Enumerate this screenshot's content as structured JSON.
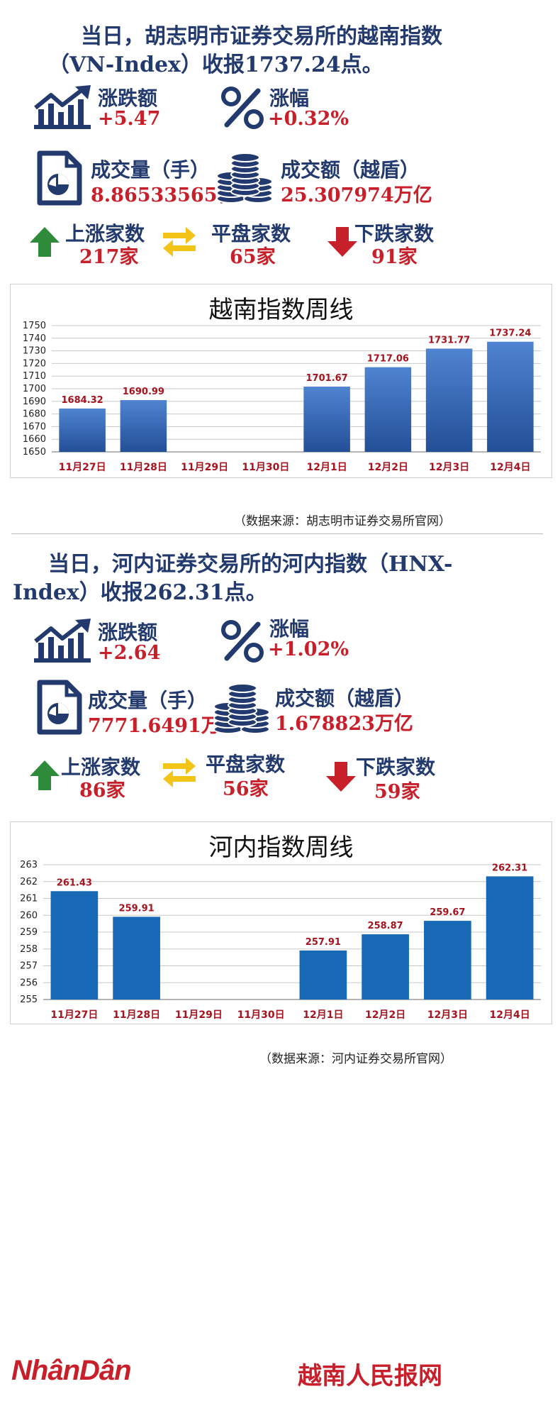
{
  "colors": {
    "navy": "#233a6e",
    "red": "#c8202a",
    "green": "#2e8b3a",
    "yellow": "#f2c418",
    "bar_grad_top": "#4f84d1",
    "bar_grad_bottom": "#234f97",
    "bar_solid": "#1769b6"
  },
  "vn": {
    "headline_l1": "当日，胡志明市证券交易所的越南指数",
    "headline_l2": "（VN-Index）收报1737.24点。",
    "change_label": "涨跌额",
    "change_value": "+5.47",
    "pct_label": "涨幅",
    "pct_value": "+0.32%",
    "volume_label": "成交量（手）",
    "volume_value": "8.86533565亿",
    "turnover_label": "成交额（越盾）",
    "turnover_value": "25.307974万亿",
    "up_label": "上涨家数",
    "up_value": "217家",
    "flat_label": "平盘家数",
    "flat_value": "65家",
    "down_label": "下跌家数",
    "down_value": "91家",
    "source": "（数据来源：胡志明市证券交易所官网）"
  },
  "hnx": {
    "headline_l1": "当日，河内证券交易所的河内指数（HNX-",
    "headline_l2": "Index）收报262.31点。",
    "change_label": "涨跌额",
    "change_value": "+2.64",
    "pct_label": "涨幅",
    "pct_value": "+1.02%",
    "volume_label": "成交量（手）",
    "volume_value": "7771.6491万",
    "turnover_label": "成交额（越盾）",
    "turnover_value": "1.678823万亿",
    "up_label": "上涨家数",
    "up_value": "86家",
    "flat_label": "平盘家数",
    "flat_value": "56家",
    "down_label": "下跌家数",
    "down_value": "59家",
    "source": "（数据来源：河内证券交易所官网）"
  },
  "footer": {
    "logo": "NhânDân",
    "brand": "越南人民报网"
  },
  "chart_data": [
    {
      "type": "bar",
      "title": "越南指数周线",
      "categories": [
        "11月27日",
        "11月28日",
        "11月29日",
        "11月30日",
        "12月1日",
        "12月2日",
        "12月3日",
        "12月4日"
      ],
      "values": [
        1684.32,
        1690.99,
        null,
        null,
        1701.67,
        1717.06,
        1731.77,
        1737.24
      ],
      "labels": [
        "1684.32",
        "1690.99",
        "",
        "",
        "1701.67",
        "1717.06",
        "1731.77",
        "1737.24"
      ],
      "yticks": [
        1650,
        1660,
        1670,
        1680,
        1690,
        1700,
        1710,
        1720,
        1730,
        1740,
        1750
      ],
      "ylim": [
        1650,
        1750
      ],
      "grid": true
    },
    {
      "type": "bar",
      "title": "河内指数周线",
      "categories": [
        "11月27日",
        "11月28日",
        "11月29日",
        "11月30日",
        "12月1日",
        "12月2日",
        "12月3日",
        "12月4日"
      ],
      "values": [
        261.43,
        259.91,
        null,
        null,
        257.91,
        258.87,
        259.67,
        262.31
      ],
      "labels": [
        "261.43",
        "259.91",
        "",
        "",
        "257.91",
        "258.87",
        "259.67",
        "262.31"
      ],
      "yticks": [
        255,
        256,
        257,
        258,
        259,
        260,
        261,
        262,
        263
      ],
      "ylim": [
        255,
        263
      ],
      "grid": true
    }
  ]
}
